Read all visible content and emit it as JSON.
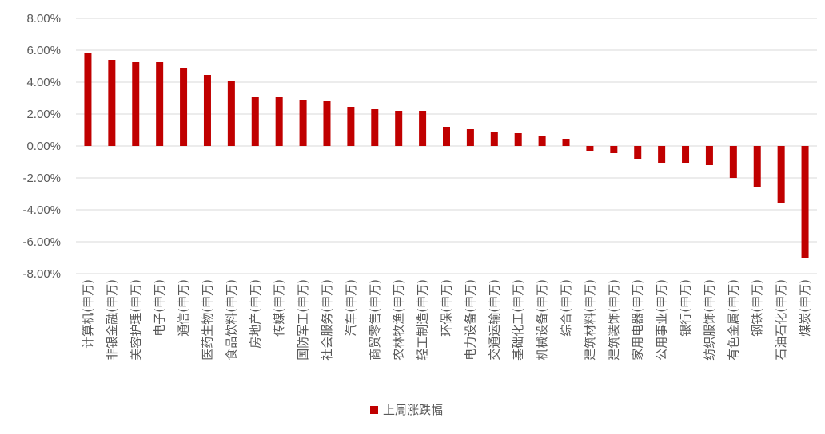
{
  "chart_data": {
    "type": "bar",
    "categories": [
      "计算机(申万)",
      "非银金融(申万)",
      "美容护理(申万)",
      "电子(申万)",
      "通信(申万)",
      "医药生物(申万)",
      "食品饮料(申万)",
      "房地产(申万)",
      "传媒(申万)",
      "国防军工(申万)",
      "社会服务(申万)",
      "汽车(申万)",
      "商贸零售(申万)",
      "农林牧渔(申万)",
      "轻工制造(申万)",
      "环保(申万)",
      "电力设备(申万)",
      "交通运输(申万)",
      "基础化工(申万)",
      "机械设备(申万)",
      "综合(申万)",
      "建筑材料(申万)",
      "建筑装饰(申万)",
      "家用电器(申万)",
      "公用事业(申万)",
      "银行(申万)",
      "纺织服饰(申万)",
      "有色金属(申万)",
      "钢铁(申万)",
      "石油石化(申万)",
      "煤炭(申万)"
    ],
    "series": [
      {
        "name": "上周涨跌幅",
        "values": [
          5.8,
          5.4,
          5.25,
          5.25,
          4.9,
          4.45,
          4.05,
          3.1,
          3.1,
          2.9,
          2.85,
          2.45,
          2.35,
          2.2,
          2.2,
          1.2,
          1.05,
          0.9,
          0.8,
          0.6,
          0.45,
          -0.3,
          -0.45,
          -0.8,
          -1.05,
          -1.05,
          -1.2,
          -2.0,
          -2.6,
          -3.55,
          -7.0
        ]
      }
    ],
    "yticks": [
      "8.00%",
      "6.00%",
      "4.00%",
      "2.00%",
      "0.00%",
      "-2.00%",
      "-4.00%",
      "-6.00%",
      "-8.00%"
    ],
    "ylim": [
      -8,
      8
    ],
    "grid": true,
    "legend_position": "bottom",
    "bar_color": "#c00000"
  }
}
